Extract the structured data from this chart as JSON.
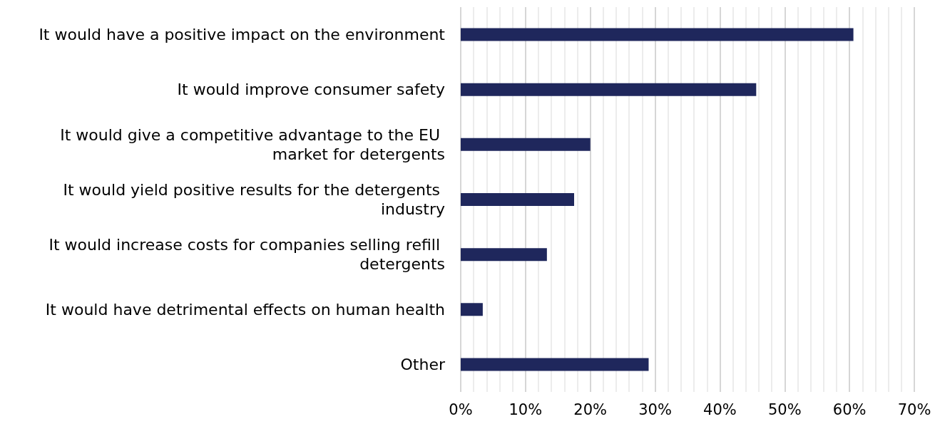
{
  "chart_data": {
    "type": "bar",
    "orientation": "horizontal",
    "categories": [
      "It would have a positive impact on the environment",
      "It would improve consumer safety",
      "It would give a competitive advantage to the EU market for detergents",
      "It would yield positive results for the detergents industry",
      "It would increase costs for companies selling refill detergents",
      "It would have detrimental effects on human health",
      "Other"
    ],
    "values": [
      60.6,
      45.6,
      20,
      17.5,
      13.3,
      3.4,
      29
    ],
    "color": "#1f275c",
    "xlim": [
      0,
      70
    ],
    "xticks": [
      {
        "value": 0,
        "label": "0%"
      },
      {
        "value": 10,
        "label": "10%"
      },
      {
        "value": 20,
        "label": "20%"
      },
      {
        "value": 30,
        "label": "30%"
      },
      {
        "value": 40,
        "label": "40%"
      },
      {
        "value": 50,
        "label": "50%"
      },
      {
        "value": 60,
        "label": "60%"
      },
      {
        "value": 70,
        "label": "70%"
      }
    ],
    "grid": "x"
  }
}
